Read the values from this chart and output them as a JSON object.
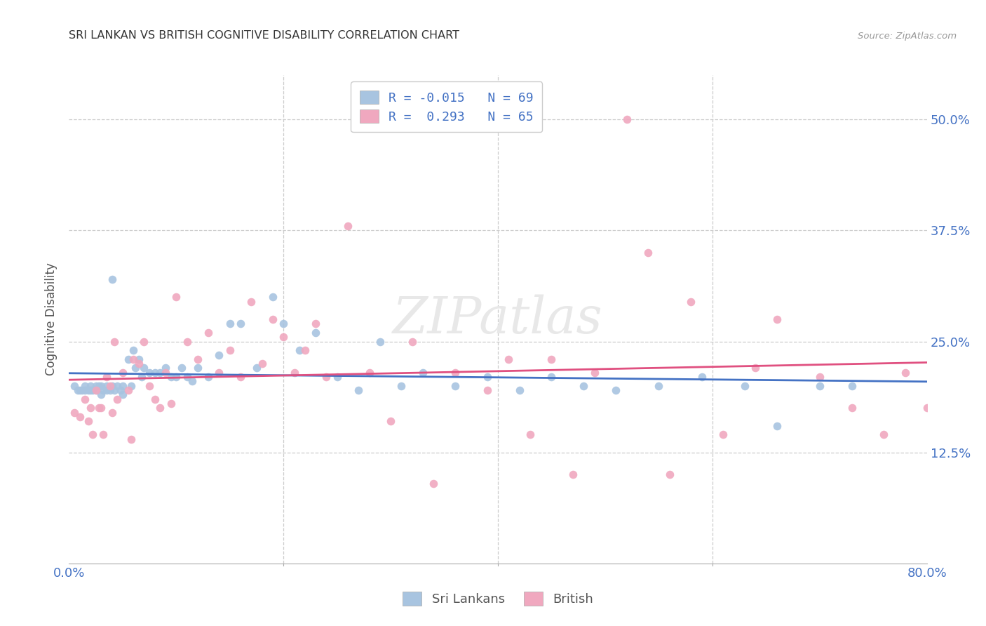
{
  "title": "SRI LANKAN VS BRITISH COGNITIVE DISABILITY CORRELATION CHART",
  "source": "Source: ZipAtlas.com",
  "ylabel": "Cognitive Disability",
  "ytick_labels": [
    "12.5%",
    "25.0%",
    "37.5%",
    "50.0%"
  ],
  "ytick_values": [
    0.125,
    0.25,
    0.375,
    0.5
  ],
  "xtick_labels": [
    "0.0%",
    "80.0%"
  ],
  "xtick_values": [
    0.0,
    0.8
  ],
  "xmin": 0.0,
  "xmax": 0.8,
  "ymin": 0.0,
  "ymax": 0.55,
  "sri_lankan_color": "#a8c4e0",
  "british_color": "#f0a8bf",
  "sri_lankan_line_color": "#4472c4",
  "british_line_color": "#e05080",
  "R_sri": -0.015,
  "N_sri": 69,
  "R_brit": 0.293,
  "N_brit": 65,
  "legend_series_1": "Sri Lankans",
  "legend_series_2": "British",
  "watermark": "ZIPatlas",
  "sri_lankans_x": [
    0.005,
    0.008,
    0.01,
    0.012,
    0.015,
    0.015,
    0.018,
    0.02,
    0.02,
    0.022,
    0.025,
    0.025,
    0.028,
    0.03,
    0.03,
    0.032,
    0.035,
    0.035,
    0.038,
    0.04,
    0.04,
    0.042,
    0.045,
    0.048,
    0.05,
    0.05,
    0.055,
    0.058,
    0.06,
    0.062,
    0.065,
    0.068,
    0.07,
    0.075,
    0.08,
    0.085,
    0.09,
    0.095,
    0.1,
    0.105,
    0.11,
    0.115,
    0.12,
    0.13,
    0.14,
    0.15,
    0.16,
    0.175,
    0.19,
    0.2,
    0.215,
    0.23,
    0.25,
    0.27,
    0.29,
    0.31,
    0.33,
    0.36,
    0.39,
    0.42,
    0.45,
    0.48,
    0.51,
    0.55,
    0.59,
    0.63,
    0.66,
    0.7,
    0.73
  ],
  "sri_lankans_y": [
    0.2,
    0.195,
    0.195,
    0.195,
    0.2,
    0.195,
    0.195,
    0.2,
    0.195,
    0.195,
    0.2,
    0.195,
    0.2,
    0.2,
    0.19,
    0.195,
    0.2,
    0.195,
    0.195,
    0.2,
    0.32,
    0.195,
    0.2,
    0.195,
    0.2,
    0.19,
    0.23,
    0.2,
    0.24,
    0.22,
    0.23,
    0.21,
    0.22,
    0.215,
    0.215,
    0.215,
    0.22,
    0.21,
    0.21,
    0.22,
    0.21,
    0.205,
    0.22,
    0.21,
    0.235,
    0.27,
    0.27,
    0.22,
    0.3,
    0.27,
    0.24,
    0.26,
    0.21,
    0.195,
    0.25,
    0.2,
    0.215,
    0.2,
    0.21,
    0.195,
    0.21,
    0.2,
    0.195,
    0.2,
    0.21,
    0.2,
    0.155,
    0.2,
    0.2
  ],
  "british_x": [
    0.005,
    0.01,
    0.015,
    0.018,
    0.02,
    0.022,
    0.025,
    0.028,
    0.03,
    0.032,
    0.035,
    0.038,
    0.04,
    0.042,
    0.045,
    0.05,
    0.055,
    0.058,
    0.06,
    0.065,
    0.07,
    0.075,
    0.08,
    0.085,
    0.09,
    0.095,
    0.1,
    0.11,
    0.12,
    0.13,
    0.14,
    0.15,
    0.16,
    0.17,
    0.18,
    0.19,
    0.2,
    0.21,
    0.22,
    0.23,
    0.24,
    0.26,
    0.28,
    0.3,
    0.32,
    0.34,
    0.36,
    0.39,
    0.41,
    0.43,
    0.45,
    0.47,
    0.49,
    0.52,
    0.54,
    0.56,
    0.58,
    0.61,
    0.64,
    0.66,
    0.7,
    0.73,
    0.76,
    0.78,
    0.8
  ],
  "british_y": [
    0.17,
    0.165,
    0.185,
    0.16,
    0.175,
    0.145,
    0.195,
    0.175,
    0.175,
    0.145,
    0.21,
    0.2,
    0.17,
    0.25,
    0.185,
    0.215,
    0.195,
    0.14,
    0.23,
    0.225,
    0.25,
    0.2,
    0.185,
    0.175,
    0.215,
    0.18,
    0.3,
    0.25,
    0.23,
    0.26,
    0.215,
    0.24,
    0.21,
    0.295,
    0.225,
    0.275,
    0.255,
    0.215,
    0.24,
    0.27,
    0.21,
    0.38,
    0.215,
    0.16,
    0.25,
    0.09,
    0.215,
    0.195,
    0.23,
    0.145,
    0.23,
    0.1,
    0.215,
    0.5,
    0.35,
    0.1,
    0.295,
    0.145,
    0.22,
    0.275,
    0.21,
    0.175,
    0.145,
    0.215,
    0.175
  ]
}
